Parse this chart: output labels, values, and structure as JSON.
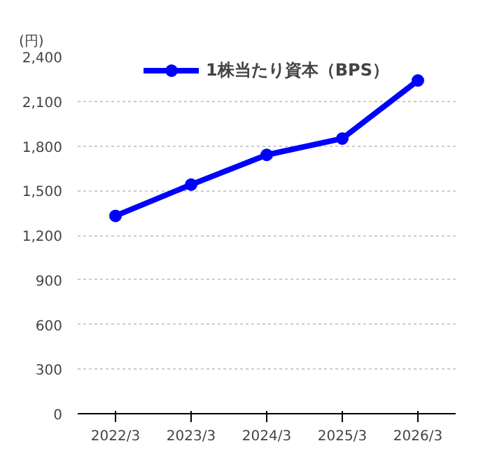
{
  "chart_data": {
    "type": "line",
    "ylabel": "(円)",
    "categories": [
      "2022/3",
      "2023/3",
      "2024/3",
      "2025/3",
      "2026/3"
    ],
    "series": [
      {
        "name": "1株当たり資本（BPS）",
        "color": "#0000ff",
        "values": [
          1330,
          1540,
          1740,
          1850,
          2240
        ]
      }
    ],
    "ylim": [
      0,
      2400
    ],
    "yticks": [
      0,
      300,
      600,
      900,
      {
        "value": 1200,
        "label": "1,200"
      },
      {
        "value": 1500,
        "label": "1,500"
      },
      {
        "value": 1800,
        "label": "1,800"
      },
      {
        "value": 2100,
        "label": "2,100"
      },
      {
        "value": 2400,
        "label": "2,400"
      }
    ],
    "grid": "y",
    "legend": "top",
    "marker": "circle",
    "line_style": "solid"
  }
}
